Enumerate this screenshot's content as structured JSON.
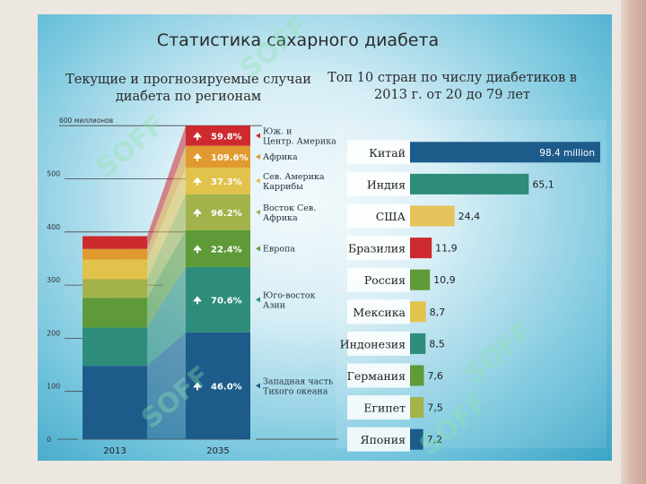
{
  "slide": {
    "title": "Статистика сахарного диабета",
    "left_subtitle": "Текущие и прогнозируемые случаи диабета по регионам",
    "right_subtitle": "Топ 10 стран по числу диабетиков в 2013 г. от 20 до 79 лет",
    "watermark": "SOFF"
  },
  "colors": {
    "region_colors": [
      "#1d5b8a",
      "#2e8c7a",
      "#5e9a38",
      "#a3b24a",
      "#e1c34c",
      "#e09a2f",
      "#cd2a2f"
    ],
    "country_colors": [
      "#1d5b8a",
      "#2e8c7a",
      "#e6c25a",
      "#cd2a2f",
      "#5e9a38",
      "#e1c34c",
      "#2e8c7a",
      "#5e9a38",
      "#a3b24a",
      "#1d5b8a"
    ]
  },
  "chart_data": [
    {
      "type": "bar",
      "stacked": true,
      "categories": [
        "2013",
        "2035"
      ],
      "yticks": [
        "0",
        "100",
        "200",
        "300",
        "400",
        "500",
        "600 миллионов"
      ],
      "ylim": [
        0,
        600
      ],
      "series": [
        {
          "name": "Западная часть Тихого океана",
          "values": [
            138,
            201
          ],
          "growth": "46.0%"
        },
        {
          "name": "Юго-восток Азии",
          "values": [
            72,
            123
          ],
          "growth": "70.6%"
        },
        {
          "name": "Европа",
          "values": [
            56,
            69
          ],
          "growth": "22.4%"
        },
        {
          "name": "Восток Сев. Африка",
          "values": [
            35,
            68
          ],
          "growth": "96.2%"
        },
        {
          "name": "Сев. Америка Каррибы",
          "values": [
            37,
            50
          ],
          "growth": "37.3%"
        },
        {
          "name": "Африка",
          "values": [
            20,
            41
          ],
          "growth": "109.6%"
        },
        {
          "name": "Юж. и Центр. Америка",
          "values": [
            24,
            38
          ],
          "growth": "59.8%"
        }
      ]
    },
    {
      "type": "bar",
      "orientation": "horizontal",
      "categories": [
        "Китай",
        "Индия",
        "США",
        "Бразилия",
        "Россия",
        "Мексика",
        "Индонезия",
        "Германия",
        "Египет",
        "Япония"
      ],
      "values": [
        98.4,
        65.1,
        24.4,
        11.9,
        10.9,
        8.7,
        8.5,
        7.6,
        7.5,
        7.2
      ],
      "value_labels": [
        "98.4 million",
        "65,1",
        "24,4",
        "11,9",
        "10,9",
        "8,7",
        "8,5",
        "7,6",
        "7,5",
        "7,2"
      ]
    }
  ]
}
